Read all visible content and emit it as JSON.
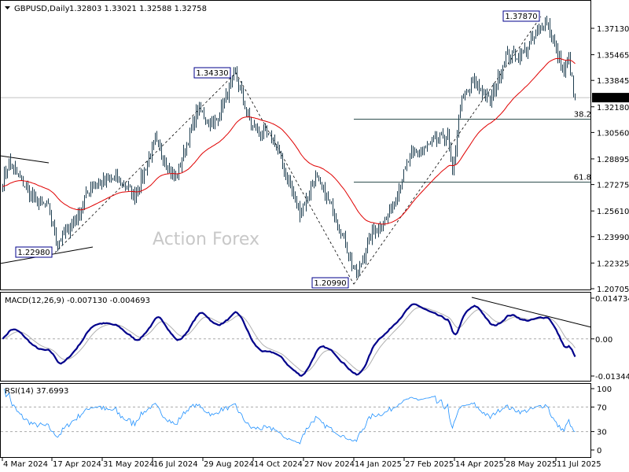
{
  "header": {
    "symbol": "GBPUSD,Daily",
    "ohlc": "1.32803 1.33021 1.32588 1.32758",
    "menu_icon": "triangle-down-icon"
  },
  "watermark": "Action Forex",
  "colors": {
    "bars": "#1d3d4f",
    "ma": "#e00000",
    "macd": "#00008b",
    "signal": "#b0b0b0",
    "rsi": "#1e90ff",
    "current_price_bg": "#000000"
  },
  "price_axis": {
    "ticks": [
      "1.37130",
      "1.35465",
      "1.33845",
      "1.32180",
      "1.30560",
      "1.28895",
      "1.27275",
      "1.25610",
      "1.23990",
      "1.22325",
      "1.20705"
    ],
    "current": "1.32758"
  },
  "annotations": {
    "high_2025": "1.37870",
    "high_2024": "1.34330",
    "low_apr_2024": "1.22980",
    "low_jan_2025": "1.20990",
    "fib_382": "38.2",
    "fib_618": "61.8"
  },
  "macd": {
    "title": "MACD(12,26,9) -0.007130 -0.004693",
    "ticks": [
      "0.014734",
      "0.00",
      "-0.013442"
    ]
  },
  "rsi": {
    "title": "RSI(14) 37.6993",
    "ticks": [
      "100",
      "70",
      "30",
      "0"
    ]
  },
  "date_axis": [
    "4 Mar 2024",
    "17 Apr 2024",
    "31 May 2024",
    "16 Jul 2024",
    "29 Aug 2024",
    "14 Oct 2024",
    "27 Nov 2024",
    "14 Jan 2025",
    "27 Feb 2025",
    "14 Apr 2025",
    "28 May 2025",
    "11 Jul 2025"
  ],
  "chart_data": {
    "type": "ohlc-bar",
    "symbol": "GBPUSD",
    "timeframe": "Daily",
    "last_bar": {
      "open": 1.32803,
      "high": 1.33021,
      "low": 1.32588,
      "close": 1.32758
    },
    "ylim": [
      1.20705,
      1.3713
    ],
    "approx_closes": [
      [
        "2024-03-04",
        1.275
      ],
      [
        "2024-03-08",
        1.287
      ],
      [
        "2024-04-01",
        1.263
      ],
      [
        "2024-04-12",
        1.258
      ],
      [
        "2024-04-22",
        1.236
      ],
      [
        "2024-05-08",
        1.252
      ],
      [
        "2024-05-21",
        1.272
      ],
      [
        "2024-06-12",
        1.277
      ],
      [
        "2024-06-28",
        1.266
      ],
      [
        "2024-07-17",
        1.3
      ],
      [
        "2024-08-05",
        1.276
      ],
      [
        "2024-08-23",
        1.32
      ],
      [
        "2024-09-06",
        1.31
      ],
      [
        "2024-09-26",
        1.342
      ],
      [
        "2024-10-10",
        1.31
      ],
      [
        "2024-10-31",
        1.3
      ],
      [
        "2024-11-08",
        1.282
      ],
      [
        "2024-11-22",
        1.255
      ],
      [
        "2024-12-06",
        1.277
      ],
      [
        "2024-12-24",
        1.255
      ],
      [
        "2025-01-13",
        1.215
      ],
      [
        "2025-01-27",
        1.243
      ],
      [
        "2025-02-07",
        1.25
      ],
      [
        "2025-02-28",
        1.29
      ],
      [
        "2025-03-18",
        1.297
      ],
      [
        "2025-04-03",
        1.305
      ],
      [
        "2025-04-08",
        1.277
      ],
      [
        "2025-04-15",
        1.324
      ],
      [
        "2025-04-28",
        1.338
      ],
      [
        "2025-05-12",
        1.325
      ],
      [
        "2025-05-26",
        1.354
      ],
      [
        "2025-06-09",
        1.354
      ],
      [
        "2025-07-01",
        1.377
      ],
      [
        "2025-07-08",
        1.36
      ],
      [
        "2025-07-16",
        1.342
      ],
      [
        "2025-07-21",
        1.354
      ],
      [
        "2025-07-24",
        1.33
      ],
      [
        "2025-07-25",
        1.32758
      ]
    ],
    "fibonacci": {
      "from": 1.2099,
      "to": 1.3787,
      "levels": [
        38.2,
        61.8
      ]
    },
    "moving_average": "red line",
    "macd": {
      "fast": 12,
      "slow": 26,
      "signal": 9,
      "main": -0.00713,
      "signal_value": -0.004693,
      "ylim": [
        -0.013442,
        0.014734
      ]
    },
    "rsi": {
      "period": 14,
      "value": 37.6993,
      "levels": [
        30,
        70
      ],
      "ylim": [
        0,
        100
      ]
    }
  }
}
